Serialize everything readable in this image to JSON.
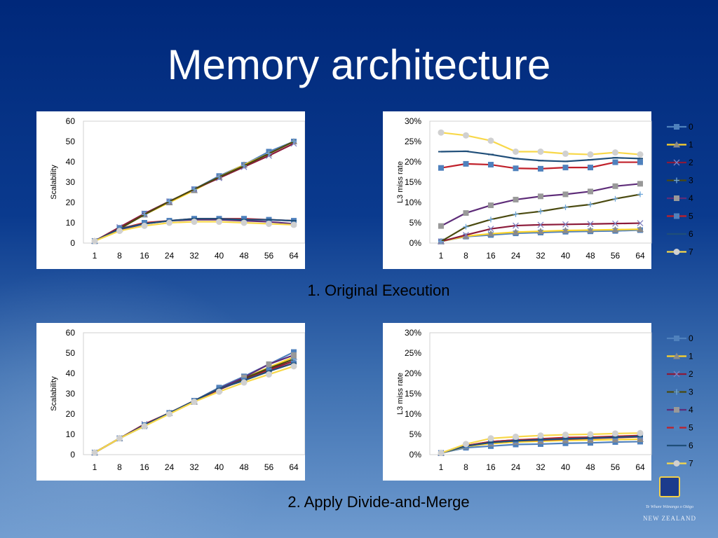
{
  "title": "Memory architecture",
  "captions": {
    "top": "1. Original Execution",
    "bottom": "2. Apply Divide-and-Merge"
  },
  "logo": {
    "motto": "Te Whare Wānanga o Otāgo",
    "country": "NEW ZEALAND"
  },
  "series_style": [
    {
      "name": "0",
      "color": "#4f81bd",
      "marker": "square"
    },
    {
      "name": "1",
      "color": "#ffd42a",
      "marker": "triangle"
    },
    {
      "name": "2",
      "color": "#8b1a3a",
      "marker": "x"
    },
    {
      "name": "3",
      "color": "#4a4a10",
      "marker": "plus"
    },
    {
      "name": "4",
      "color": "#5e2d79",
      "marker": "square"
    },
    {
      "name": "5",
      "color": "#c0202a",
      "marker": "square"
    },
    {
      "name": "6",
      "color": "#1f4e79",
      "marker": "dash"
    },
    {
      "name": "7",
      "color": "#f8d84a",
      "marker": "circle"
    }
  ],
  "chart_data": [
    {
      "type": "line",
      "ylabel": "Scalability",
      "categories": [
        "1",
        "8",
        "16",
        "24",
        "32",
        "40",
        "48",
        "56",
        "64"
      ],
      "ylim": [
        0,
        60
      ],
      "yticks": [
        "0",
        "10",
        "20",
        "30",
        "40",
        "50",
        "60"
      ],
      "legend": "right",
      "series": [
        {
          "name": "0",
          "values": [
            1,
            7.5,
            14.5,
            20.5,
            26.5,
            33,
            38.5,
            45,
            50
          ]
        },
        {
          "name": "1",
          "values": [
            1,
            7,
            14,
            20,
            26,
            32.5,
            38.5,
            44,
            50
          ]
        },
        {
          "name": "2",
          "values": [
            1,
            7.8,
            14.5,
            20.5,
            26.5,
            32,
            37.5,
            43,
            49
          ]
        },
        {
          "name": "3",
          "values": [
            1,
            7,
            14,
            20.5,
            26.5,
            32.5,
            38,
            44,
            50
          ]
        },
        {
          "name": "4",
          "values": [
            1,
            6.5,
            9.5,
            11,
            11.5,
            11.5,
            11,
            10.5,
            9.5
          ]
        },
        {
          "name": "5",
          "values": [
            1,
            7,
            10,
            11,
            12,
            12,
            12,
            11.5,
            11
          ]
        },
        {
          "name": "6",
          "values": [
            1,
            7,
            9.5,
            11,
            12,
            12,
            11.5,
            11.5,
            11
          ]
        },
        {
          "name": "7",
          "values": [
            1,
            6,
            8.5,
            10,
            10.5,
            10.5,
            10,
            9.5,
            9
          ]
        }
      ]
    },
    {
      "type": "line",
      "ylabel": "L3 miss rate",
      "categories": [
        "1",
        "8",
        "16",
        "24",
        "32",
        "40",
        "48",
        "56",
        "64"
      ],
      "ylim": [
        0,
        0.3
      ],
      "yticks": [
        "0%",
        "5%",
        "10%",
        "15%",
        "20%",
        "25%",
        "30%"
      ],
      "legend": "right",
      "series": [
        {
          "name": "0",
          "values": [
            0.004,
            0.016,
            0.02,
            0.024,
            0.026,
            0.028,
            0.029,
            0.03,
            0.032
          ]
        },
        {
          "name": "1",
          "values": [
            0.004,
            0.017,
            0.023,
            0.027,
            0.029,
            0.031,
            0.032,
            0.033,
            0.034
          ]
        },
        {
          "name": "2",
          "values": [
            0.004,
            0.02,
            0.035,
            0.043,
            0.045,
            0.046,
            0.047,
            0.048,
            0.049
          ]
        },
        {
          "name": "3",
          "values": [
            0.004,
            0.04,
            0.058,
            0.071,
            0.078,
            0.088,
            0.095,
            0.109,
            0.12
          ]
        },
        {
          "name": "4",
          "values": [
            0.042,
            0.074,
            0.093,
            0.107,
            0.115,
            0.12,
            0.127,
            0.14,
            0.146
          ]
        },
        {
          "name": "5",
          "values": [
            0.185,
            0.195,
            0.193,
            0.184,
            0.183,
            0.186,
            0.186,
            0.199,
            0.199
          ]
        },
        {
          "name": "6",
          "values": [
            0.225,
            0.226,
            0.218,
            0.208,
            0.203,
            0.201,
            0.205,
            0.21,
            0.208
          ]
        },
        {
          "name": "7",
          "values": [
            0.272,
            0.265,
            0.252,
            0.225,
            0.225,
            0.22,
            0.218,
            0.223,
            0.218
          ]
        }
      ]
    },
    {
      "type": "line",
      "ylabel": "Scalability",
      "categories": [
        "1",
        "8",
        "16",
        "24",
        "32",
        "40",
        "48",
        "56",
        "64"
      ],
      "ylim": [
        0,
        60
      ],
      "yticks": [
        "0",
        "10",
        "20",
        "30",
        "40",
        "50",
        "60"
      ],
      "legend": "right",
      "series": [
        {
          "name": "0",
          "values": [
            1,
            8,
            14,
            20.5,
            26.5,
            33,
            38.5,
            44.5,
            50.5
          ]
        },
        {
          "name": "1",
          "values": [
            1,
            8,
            14.5,
            20.5,
            26,
            32,
            37.5,
            43,
            48
          ]
        },
        {
          "name": "2",
          "values": [
            1,
            8,
            15,
            20.5,
            26.5,
            32,
            37,
            42,
            46
          ]
        },
        {
          "name": "3",
          "values": [
            1,
            8,
            14.5,
            20.5,
            26.5,
            32.5,
            37.5,
            42.5,
            47
          ]
        },
        {
          "name": "4",
          "values": [
            1,
            8,
            14.5,
            20.5,
            26.5,
            32.5,
            38,
            44.5,
            49
          ]
        },
        {
          "name": "5",
          "values": [
            1,
            8,
            14.5,
            20.5,
            26.5,
            32.5,
            36.5,
            41.5,
            45
          ]
        },
        {
          "name": "6",
          "values": [
            1,
            8,
            14.5,
            20.5,
            26.5,
            32.5,
            36.5,
            41,
            45
          ]
        },
        {
          "name": "7",
          "values": [
            1,
            8,
            14,
            20,
            26,
            31,
            35.5,
            39.5,
            43.5
          ]
        }
      ]
    },
    {
      "type": "line",
      "ylabel": "L3 miss rate",
      "categories": [
        "1",
        "8",
        "16",
        "24",
        "32",
        "40",
        "48",
        "56",
        "64"
      ],
      "ylim": [
        0,
        0.3
      ],
      "yticks": [
        "0%",
        "5%",
        "10%",
        "15%",
        "20%",
        "25%",
        "30%"
      ],
      "legend": "right",
      "series": [
        {
          "name": "0",
          "values": [
            0.004,
            0.017,
            0.021,
            0.025,
            0.026,
            0.028,
            0.029,
            0.031,
            0.032
          ]
        },
        {
          "name": "1",
          "values": [
            0.004,
            0.02,
            0.027,
            0.031,
            0.033,
            0.035,
            0.036,
            0.037,
            0.038
          ]
        },
        {
          "name": "2",
          "values": [
            0.004,
            0.022,
            0.03,
            0.034,
            0.036,
            0.038,
            0.04,
            0.042,
            0.044
          ]
        },
        {
          "name": "3",
          "values": [
            0.004,
            0.022,
            0.031,
            0.035,
            0.038,
            0.04,
            0.042,
            0.044,
            0.045
          ]
        },
        {
          "name": "4",
          "values": [
            0.004,
            0.022,
            0.032,
            0.036,
            0.038,
            0.04,
            0.042,
            0.044,
            0.046
          ]
        },
        {
          "name": "5",
          "values": [
            0.004,
            0.022,
            0.032,
            0.036,
            0.039,
            0.042,
            0.043,
            0.045,
            0.047
          ]
        },
        {
          "name": "6",
          "values": [
            0.004,
            0.021,
            0.03,
            0.034,
            0.037,
            0.039,
            0.041,
            0.043,
            0.045
          ]
        },
        {
          "name": "7",
          "values": [
            0.004,
            0.026,
            0.04,
            0.044,
            0.047,
            0.049,
            0.05,
            0.052,
            0.053
          ]
        }
      ]
    }
  ]
}
